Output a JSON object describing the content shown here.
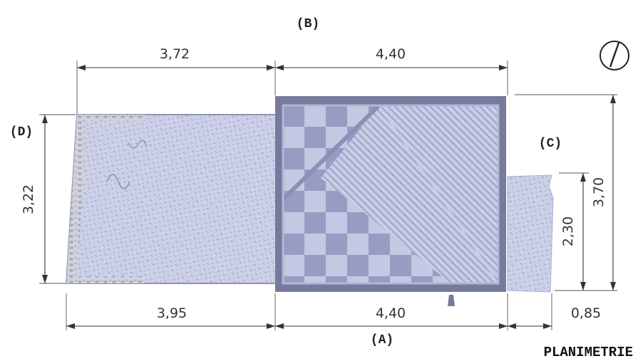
{
  "labels": {
    "side_a": "(A)",
    "side_b": "(B)",
    "side_c": "(C)",
    "side_d": "(D)",
    "title": "PLANIMETRIE"
  },
  "dimensions": {
    "top_left": "3,72",
    "top_right": "4,40",
    "bottom_left": "3,95",
    "bottom_middle": "4,40",
    "bottom_right": "0,85",
    "left_height": "3,22",
    "right_inner_height": "2,30",
    "right_outer_height": "3,70"
  },
  "colors": {
    "floor_fill": "#c9cde6",
    "floor_dark": "#9ea4c7",
    "checker_light": "#c4c8e2",
    "checker_dark": "#979dc2",
    "frame": "#767a9c",
    "stone": "#a9adb9"
  },
  "icons": {
    "north": "north-arrow-icon"
  }
}
